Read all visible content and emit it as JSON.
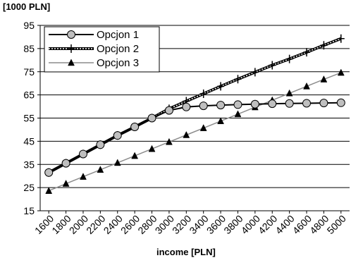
{
  "chart_data": {
    "type": "line",
    "title": "",
    "ylabel": "[1000 PLN]",
    "xlabel": "income [PLN]",
    "x": [
      1600,
      1800,
      2000,
      2200,
      2400,
      2600,
      2800,
      3000,
      3200,
      3400,
      3600,
      3800,
      4000,
      4200,
      4400,
      4600,
      4800,
      5000
    ],
    "xticks": [
      "1600",
      "1800",
      "2000",
      "2200",
      "2400",
      "2600",
      "2800",
      "3000",
      "3200",
      "3400",
      "3600",
      "3800",
      "4000",
      "4200",
      "4400",
      "4600",
      "4800",
      "5000"
    ],
    "ylim": [
      15,
      95
    ],
    "yticks": [
      15,
      25,
      35,
      45,
      55,
      65,
      75,
      85,
      95
    ],
    "grid": "horizontal",
    "legend_position": "top-left",
    "series": [
      {
        "name": "Opcjon 1",
        "marker": "circle",
        "color": "#000000",
        "marker_fill": "#bfbfbf",
        "values": [
          31.5,
          35.5,
          39.5,
          43.5,
          47.5,
          51.2,
          55.0,
          58.3,
          59.8,
          60.3,
          60.6,
          60.8,
          61.0,
          61.2,
          61.3,
          61.4,
          61.5,
          61.6
        ]
      },
      {
        "name": "Opcjon 2",
        "marker": "plus",
        "color": "#000000",
        "line_style": "dashed-double",
        "values": [
          31.5,
          35.5,
          39.5,
          43.5,
          47.5,
          51.2,
          55.0,
          59.0,
          62.3,
          65.5,
          68.7,
          71.8,
          74.8,
          77.8,
          80.5,
          83.4,
          86.4,
          89.3
        ]
      },
      {
        "name": "Opcjon 3",
        "marker": "triangle",
        "color": "#8c8c8c",
        "marker_fill": "#000000",
        "values": [
          23.6,
          26.7,
          29.7,
          32.7,
          35.7,
          38.7,
          41.7,
          44.7,
          47.7,
          50.7,
          53.7,
          56.7,
          59.7,
          62.7,
          65.7,
          68.7,
          71.7,
          74.6
        ]
      }
    ]
  }
}
